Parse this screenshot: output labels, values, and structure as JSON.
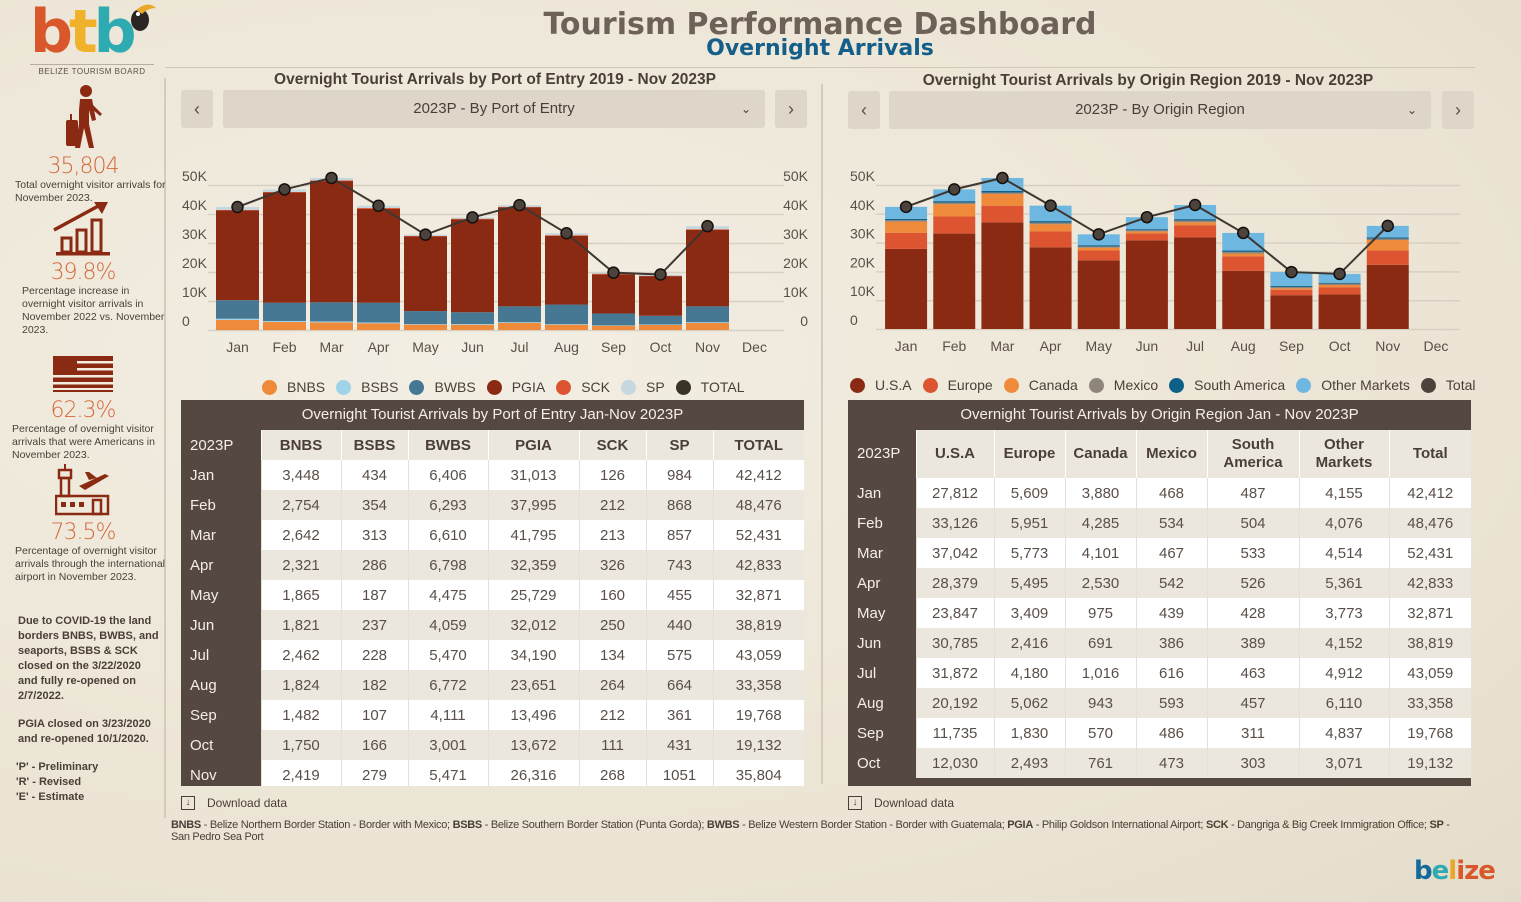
{
  "header": {
    "logo_text": [
      "b",
      "t",
      "b"
    ],
    "logo_caption": "BELIZE TOURISM BOARD",
    "title": "Tourism Performance Dashboard",
    "subtitle": "Overnight Arrivals"
  },
  "sidebar": {
    "kpis": [
      {
        "icon": "traveler-icon",
        "value": "35,804",
        "desc": "Total overnight visitor arrivals for November 2023."
      },
      {
        "icon": "growth-chart-icon",
        "value": "39.8%",
        "desc": "Percentage increase in overnight visitor arrivals in November 2022 vs. November 2023."
      },
      {
        "icon": "us-flag-icon",
        "value": "62.3%",
        "desc": "Percentage of overnight visitor arrivals that were Americans in November 2023."
      },
      {
        "icon": "airport-icon",
        "value": "73.5%",
        "desc": "Percentage of overnight visitor arrivals through the international airport in November 2023."
      }
    ],
    "notes": [
      "Due to COVID-19 the land borders BNBS, BWBS, and seaports, BSBS & SCK closed on the 3/22/2020 and fully re-opened on 2/7/2022.",
      "PGIA closed on 3/23/2020 and re-opened 10/1/2020."
    ],
    "legend_notes": [
      "'P' - Preliminary",
      "'R' - Revised",
      "'E' - Estimate"
    ]
  },
  "left_panel": {
    "title": "Overnight Tourist Arrivals by Port of Entry 2019 - Nov 2023P",
    "prev_label": "‹",
    "next_label": "›",
    "dropdown_value": "2023P - By Port of Entry",
    "download_label": "Download data",
    "table": {
      "caption": "Overnight Tourist Arrivals by Port of Entry Jan-Nov 2023P",
      "corner": "2023P",
      "columns": [
        "BNBS",
        "BSBS",
        "BWBS",
        "PGIA",
        "SCK",
        "SP",
        "TOTAL"
      ],
      "rows": [
        {
          "month": "Jan",
          "cells": [
            "3,448",
            "434",
            "6,406",
            "31,013",
            "126",
            "984",
            "42,412"
          ]
        },
        {
          "month": "Feb",
          "cells": [
            "2,754",
            "354",
            "6,293",
            "37,995",
            "212",
            "868",
            "48,476"
          ]
        },
        {
          "month": "Mar",
          "cells": [
            "2,642",
            "313",
            "6,610",
            "41,795",
            "213",
            "857",
            "52,431"
          ]
        },
        {
          "month": "Apr",
          "cells": [
            "2,321",
            "286",
            "6,798",
            "32,359",
            "326",
            "743",
            "42,833"
          ]
        },
        {
          "month": "May",
          "cells": [
            "1,865",
            "187",
            "4,475",
            "25,729",
            "160",
            "455",
            "32,871"
          ]
        },
        {
          "month": "Jun",
          "cells": [
            "1,821",
            "237",
            "4,059",
            "32,012",
            "250",
            "440",
            "38,819"
          ]
        },
        {
          "month": "Jul",
          "cells": [
            "2,462",
            "228",
            "5,470",
            "34,190",
            "134",
            "575",
            "43,059"
          ]
        },
        {
          "month": "Aug",
          "cells": [
            "1,824",
            "182",
            "6,772",
            "23,651",
            "264",
            "664",
            "33,358"
          ]
        },
        {
          "month": "Sep",
          "cells": [
            "1,482",
            "107",
            "4,111",
            "13,496",
            "212",
            "361",
            "19,768"
          ]
        },
        {
          "month": "Oct",
          "cells": [
            "1,750",
            "166",
            "3,001",
            "13,672",
            "111",
            "431",
            "19,132"
          ]
        },
        {
          "month": "Nov",
          "cells": [
            "2,419",
            "279",
            "5,471",
            "26,316",
            "268",
            "1051",
            "35,804"
          ]
        }
      ]
    }
  },
  "right_panel": {
    "title": "Overnight Tourist Arrivals by Origin Region 2019 - Nov 2023P",
    "prev_label": "‹",
    "next_label": "›",
    "dropdown_value": "2023P - By Origin Region",
    "download_label": "Download data",
    "table": {
      "caption": "Overnight Tourist Arrivals by Origin Region Jan - Nov 2023P",
      "corner": "2023P",
      "columns": [
        "U.S.A",
        "Europe",
        "Canada",
        "Mexico",
        "South America",
        "Other Markets",
        "Total"
      ],
      "rows": [
        {
          "month": "Jan",
          "cells": [
            "27,812",
            "5,609",
            "3,880",
            "468",
            "487",
            "4,155",
            "42,412"
          ]
        },
        {
          "month": "Feb",
          "cells": [
            "33,126",
            "5,951",
            "4,285",
            "534",
            "504",
            "4,076",
            "48,476"
          ]
        },
        {
          "month": "Mar",
          "cells": [
            "37,042",
            "5,773",
            "4,101",
            "467",
            "533",
            "4,514",
            "52,431"
          ]
        },
        {
          "month": "Apr",
          "cells": [
            "28,379",
            "5,495",
            "2,530",
            "542",
            "526",
            "5,361",
            "42,833"
          ]
        },
        {
          "month": "May",
          "cells": [
            "23,847",
            "3,409",
            "975",
            "439",
            "428",
            "3,773",
            "32,871"
          ]
        },
        {
          "month": "Jun",
          "cells": [
            "30,785",
            "2,416",
            "691",
            "386",
            "389",
            "4,152",
            "38,819"
          ]
        },
        {
          "month": "Jul",
          "cells": [
            "31,872",
            "4,180",
            "1,016",
            "616",
            "463",
            "4,912",
            "43,059"
          ]
        },
        {
          "month": "Aug",
          "cells": [
            "20,192",
            "5,062",
            "943",
            "593",
            "457",
            "6,110",
            "33,358"
          ]
        },
        {
          "month": "Sep",
          "cells": [
            "11,735",
            "1,830",
            "570",
            "486",
            "311",
            "4,837",
            "19,768"
          ]
        },
        {
          "month": "Oct",
          "cells": [
            "12,030",
            "2,493",
            "761",
            "473",
            "303",
            "3,071",
            "19,132"
          ]
        }
      ]
    }
  },
  "footnote": [
    {
      "abbr": "BNBS",
      "text": " - Belize Northern Border Station - Border with Mexico; "
    },
    {
      "abbr": "BSBS",
      "text": " - Belize Southern Border Station (Punta Gorda); "
    },
    {
      "abbr": "BWBS",
      "text": " - Belize Western Border Station - Border with Guatemala; "
    },
    {
      "abbr": "PGIA",
      "text": " - Philip Goldson International Airport; "
    },
    {
      "abbr": "SCK",
      "text": " - Dangriga & Big Creek Immigration Office; "
    },
    {
      "abbr": "SP",
      "text": " - San Pedro Sea Port"
    }
  ],
  "brand_logo": [
    "b",
    "e",
    "l",
    "i",
    "z",
    "e"
  ],
  "colors": {
    "BNBS": "#ef8a3a",
    "BSBS": "#9fd3ea",
    "BWBS": "#467893",
    "PGIA": "#8b2a12",
    "SCK": "#dc5530",
    "SP": "#c5d7df",
    "TOTAL": "#3a3128",
    "USA": "#8b2a12",
    "Europe": "#dc5530",
    "Canada": "#ef8a3a",
    "Mexico": "#8e857d",
    "South America": "#0f6089",
    "Other Markets": "#6db7e1",
    "Total": "#4d433d"
  },
  "chart_data": [
    {
      "type": "bar",
      "stacked": true,
      "title": "Overnight Tourist Arrivals by Port of Entry 2019 - Nov 2023P",
      "categories": [
        "Jan",
        "Feb",
        "Mar",
        "Apr",
        "May",
        "Jun",
        "Jul",
        "Aug",
        "Sep",
        "Oct",
        "Nov",
        "Dec"
      ],
      "yticks": [
        "0",
        "10K",
        "20K",
        "30K",
        "40K",
        "50K"
      ],
      "ylim": [
        0,
        50000
      ],
      "legend_position": "bottom",
      "series": [
        {
          "name": "BNBS",
          "values": [
            3448,
            2754,
            2642,
            2321,
            1865,
            1821,
            2462,
            1824,
            1482,
            1750,
            2419,
            null
          ]
        },
        {
          "name": "BSBS",
          "values": [
            434,
            354,
            313,
            286,
            187,
            237,
            228,
            182,
            107,
            166,
            279,
            null
          ]
        },
        {
          "name": "BWBS",
          "values": [
            6406,
            6293,
            6610,
            6798,
            4475,
            4059,
            5470,
            6772,
            4111,
            3001,
            5471,
            null
          ]
        },
        {
          "name": "PGIA",
          "values": [
            31013,
            37995,
            41795,
            32359,
            25729,
            32012,
            34190,
            23651,
            13496,
            13672,
            26316,
            null
          ]
        },
        {
          "name": "SCK",
          "values": [
            126,
            212,
            213,
            326,
            160,
            250,
            134,
            264,
            212,
            111,
            268,
            null
          ]
        },
        {
          "name": "SP",
          "values": [
            984,
            868,
            857,
            743,
            455,
            440,
            575,
            664,
            361,
            431,
            1051,
            null
          ]
        }
      ],
      "line": {
        "name": "TOTAL",
        "values": [
          42412,
          48476,
          52431,
          42833,
          32871,
          38819,
          43059,
          33358,
          19768,
          19132,
          35804,
          null
        ]
      }
    },
    {
      "type": "bar",
      "stacked": true,
      "title": "Overnight Tourist Arrivals by Origin Region 2019 - Nov 2023P",
      "categories": [
        "Jan",
        "Feb",
        "Mar",
        "Apr",
        "May",
        "Jun",
        "Jul",
        "Aug",
        "Sep",
        "Oct",
        "Nov",
        "Dec"
      ],
      "yticks": [
        "0",
        "10K",
        "20K",
        "30K",
        "40K",
        "50K"
      ],
      "ylim": [
        0,
        50000
      ],
      "legend_position": "bottom",
      "series": [
        {
          "name": "U.S.A",
          "values": [
            27812,
            33126,
            37042,
            28379,
            23847,
            30785,
            31872,
            20192,
            11735,
            12030,
            22300,
            null
          ]
        },
        {
          "name": "Europe",
          "values": [
            5609,
            5951,
            5773,
            5495,
            3409,
            2416,
            4180,
            5062,
            1830,
            2493,
            5000,
            null
          ]
        },
        {
          "name": "Canada",
          "values": [
            3880,
            4285,
            4101,
            2530,
            975,
            691,
            1016,
            943,
            570,
            761,
            3600,
            null
          ]
        },
        {
          "name": "Mexico",
          "values": [
            468,
            534,
            467,
            542,
            439,
            386,
            616,
            593,
            486,
            473,
            500,
            null
          ]
        },
        {
          "name": "South America",
          "values": [
            487,
            504,
            533,
            526,
            428,
            389,
            463,
            457,
            311,
            303,
            400,
            null
          ]
        },
        {
          "name": "Other Markets",
          "values": [
            4155,
            4076,
            4514,
            5361,
            3773,
            4152,
            4912,
            6110,
            4837,
            3071,
            4004,
            null
          ]
        }
      ],
      "line": {
        "name": "Total",
        "values": [
          42412,
          48476,
          52431,
          42833,
          32871,
          38819,
          43059,
          33358,
          19768,
          19132,
          35804,
          null
        ]
      }
    }
  ]
}
